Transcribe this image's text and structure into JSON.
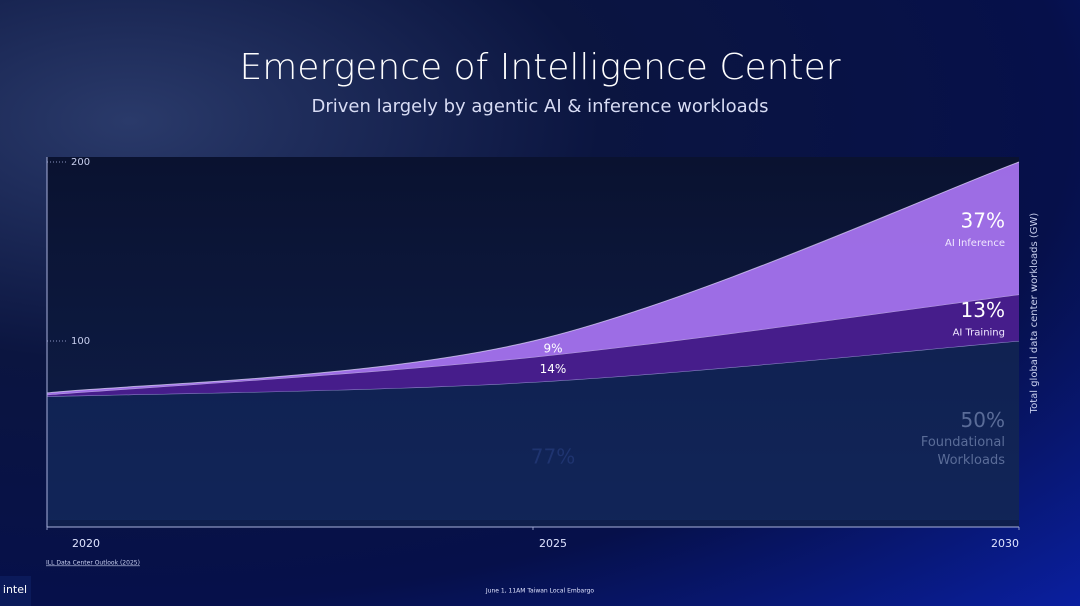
{
  "chart_data": {
    "type": "area",
    "title": "Emergence of Intelligence Center",
    "subtitle": "Driven largely by agentic AI & inference workloads",
    "y_label": "Total global data center workloads (GW)",
    "x": [
      2020,
      2025,
      2030
    ],
    "xlim": [
      2020,
      2030
    ],
    "xticks": [
      2020,
      2025,
      2030
    ],
    "ylim": [
      0,
      200
    ],
    "yticks": [
      100,
      200
    ],
    "series": [
      {
        "name": "Foundational Workloads",
        "color": "#142a63",
        "values": [
          69,
          77,
          100
        ],
        "share_labels": [
          null,
          "77%",
          "50%"
        ]
      },
      {
        "name": "AI Training",
        "color": "#4a1d8f",
        "values": [
          1,
          14,
          26
        ],
        "share_labels": [
          null,
          "14%",
          "13%"
        ]
      },
      {
        "name": "AI Inference",
        "color": "#a572ee",
        "values": [
          1,
          9,
          74
        ],
        "share_labels": [
          null,
          "9%",
          "37%"
        ]
      }
    ],
    "footnote": "ILL Data Center Outlook (2025)",
    "footer": "June 1, 11AM Taiwan Local Embargo",
    "logo": "intel"
  }
}
